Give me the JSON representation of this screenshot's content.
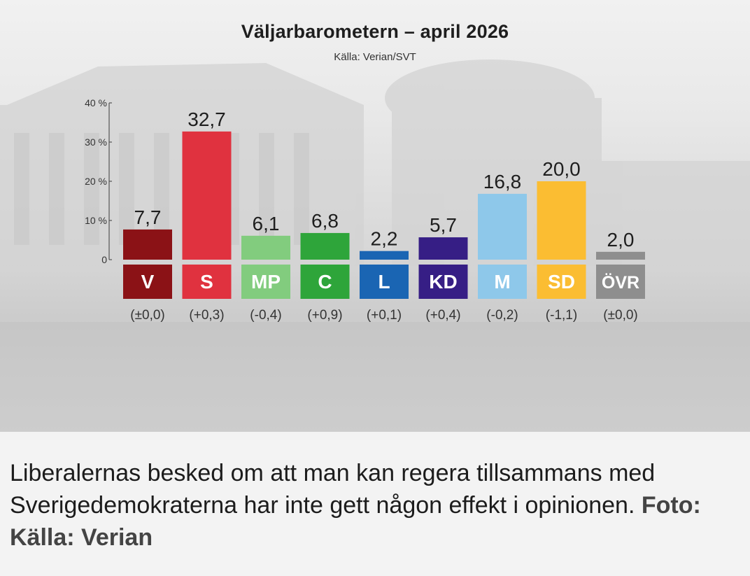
{
  "chart_data": {
    "type": "bar",
    "title": "Väljarbarometern – april 2026",
    "subtitle": "Källa: Verian/SVT",
    "categories": [
      "V",
      "S",
      "MP",
      "C",
      "L",
      "KD",
      "M",
      "SD",
      "ÖVR"
    ],
    "values": [
      7.7,
      32.7,
      6.1,
      6.8,
      2.2,
      5.7,
      16.8,
      20.0,
      2.0
    ],
    "value_labels": [
      "7,7",
      "32,7",
      "6,1",
      "6,8",
      "2,2",
      "5,7",
      "16,8",
      "20,0",
      "2,0"
    ],
    "changes": [
      "(±0,0)",
      "(+0,3)",
      "(-0,4)",
      "(+0,9)",
      "(+0,1)",
      "(+0,4)",
      "(-0,2)",
      "(-1,1)",
      "(±0,0)"
    ],
    "colors": [
      "#8b1216",
      "#e0323f",
      "#82cc7e",
      "#2ea53a",
      "#1a65b3",
      "#361e85",
      "#8ec8ea",
      "#fbbd32",
      "#8e8e8e"
    ],
    "y_ticks": [
      0,
      10,
      20,
      30,
      40
    ],
    "y_tick_labels": [
      "0",
      "10 %",
      "20 %",
      "30 %",
      "40 %"
    ],
    "ylim": [
      0,
      40
    ],
    "grid": false,
    "legend": "none"
  },
  "caption": {
    "text": "Liberalernas besked om att man kan regera tillsammans med Sverigedemokraterna har inte gett någon effekt i opinionen.",
    "credit": "Foto: Källa: Verian"
  }
}
